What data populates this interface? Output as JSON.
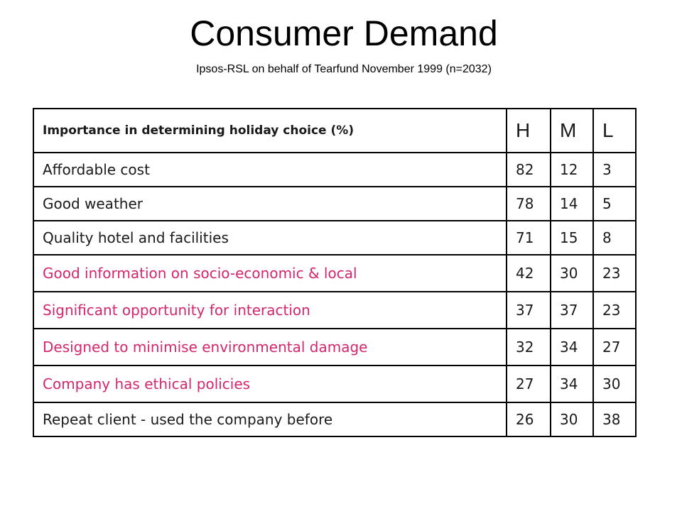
{
  "title": "Consumer Demand",
  "subtitle": "Ipsos-RSL on behalf of Tearfund November 1999 (n=2032)",
  "table": {
    "header": {
      "label": "Importance in determining holiday choice (%)",
      "h": "H",
      "m": "M",
      "l": "L"
    },
    "accent_color": "#d3266e",
    "rows": [
      {
        "label": "Affordable cost",
        "h": "82",
        "m": "12",
        "l": "3",
        "highlight": false
      },
      {
        "label": "Good weather",
        "h": "78",
        "m": "14",
        "l": "5",
        "highlight": false
      },
      {
        "label": "Quality hotel and facilities",
        "h": "71",
        "m": "15",
        "l": "8",
        "highlight": false
      },
      {
        "label": "Good information on socio-economic & local",
        "h": "42",
        "m": "30",
        "l": "23",
        "highlight": true
      },
      {
        "label": "Significant opportunity for interaction",
        "h": "37",
        "m": "37",
        "l": "23",
        "highlight": true
      },
      {
        "label": "Designed to minimise environmental damage",
        "h": "32",
        "m": "34",
        "l": "27",
        "highlight": true
      },
      {
        "label": "Company has ethical policies",
        "h": "27",
        "m": "34",
        "l": "30",
        "highlight": true
      },
      {
        "label": "Repeat client - used the company before",
        "h": "26",
        "m": "30",
        "l": "38",
        "highlight": false
      }
    ]
  }
}
